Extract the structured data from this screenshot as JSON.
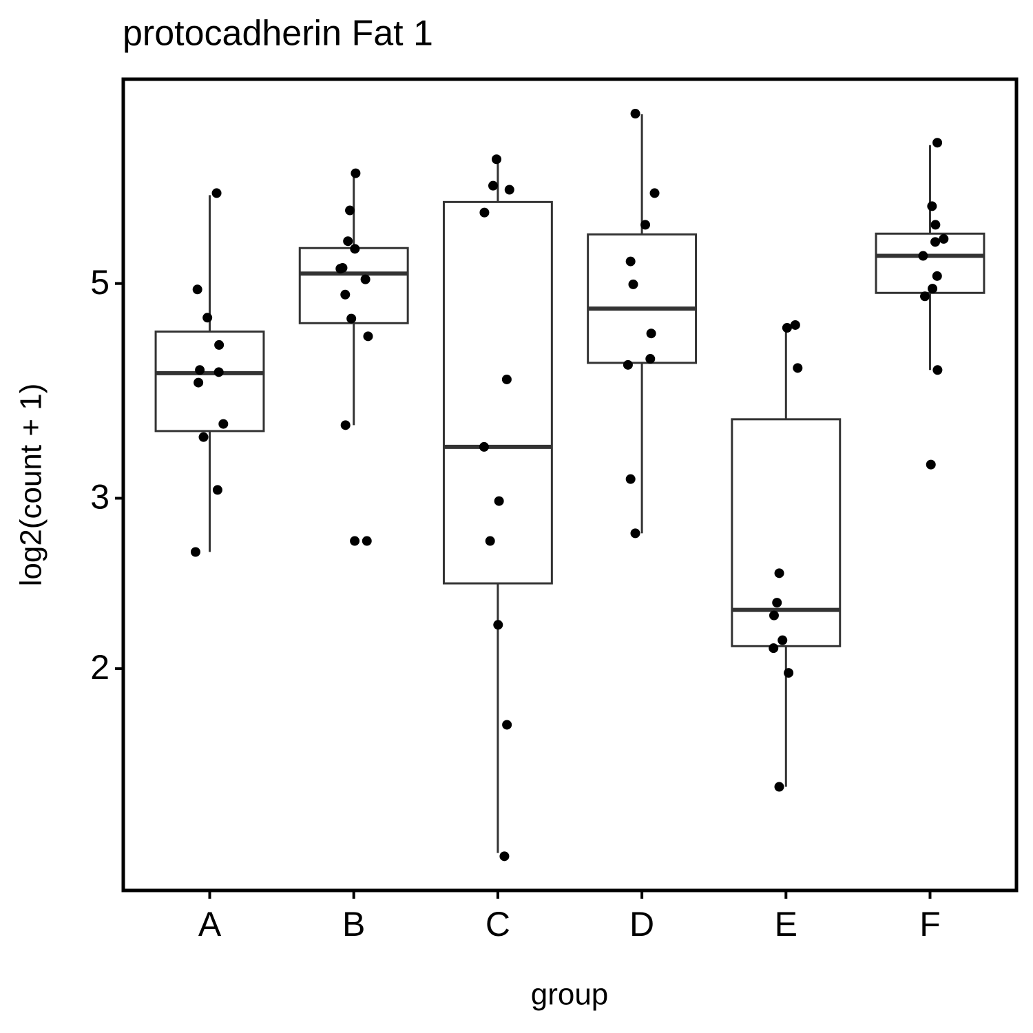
{
  "chart_data": {
    "type": "box",
    "title": "protocadherin Fat 1",
    "x_label": "group",
    "y_label": "log2(count + 1)",
    "categories": [
      "A",
      "B",
      "C",
      "D",
      "E",
      "F"
    ],
    "boxes": [
      {
        "whisker_low": 2.64,
        "q1": 3.52,
        "median": 4.04,
        "q3": 4.46,
        "whisker_high": 6.17
      },
      {
        "whisker_low": 3.57,
        "q1": 4.55,
        "median": 5.12,
        "q3": 5.44,
        "whisker_high": 6.48
      },
      {
        "whisker_low": 1.29,
        "q1": 2.45,
        "median": 3.39,
        "q3": 6.07,
        "whisker_high": 6.7
      },
      {
        "whisker_low": 2.76,
        "q1": 4.14,
        "median": 4.71,
        "q3": 5.62,
        "whisker_high": 7.48
      },
      {
        "whisker_low": 1.51,
        "q1": 2.11,
        "median": 2.3,
        "q3": 3.62,
        "whisker_high": 4.49
      },
      {
        "whisker_low": 4.07,
        "q1": 4.89,
        "median": 5.34,
        "q3": 5.63,
        "whisker_high": 6.95
      }
    ],
    "points": [
      [
        6.2,
        4.93,
        4.61,
        4.32,
        4.07,
        4.05,
        3.95,
        3.58,
        3.47,
        3.06,
        2.64
      ],
      [
        6.5,
        5.95,
        5.53,
        5.43,
        5.19,
        5.18,
        5.05,
        4.87,
        4.6,
        4.41,
        3.57,
        2.71,
        2.71
      ],
      [
        6.72,
        6.31,
        6.25,
        5.92,
        3.98,
        3.39,
        2.98,
        2.71,
        2.22,
        1.75,
        1.28
      ],
      [
        7.49,
        6.2,
        5.75,
        5.27,
        4.99,
        4.44,
        4.18,
        4.12,
        3.14,
        2.76
      ],
      [
        4.53,
        4.5,
        4.09,
        2.51,
        2.34,
        2.27,
        2.14,
        2.1,
        1.98,
        1.51
      ],
      [
        6.99,
        6.01,
        5.75,
        5.56,
        5.52,
        5.34,
        5.09,
        4.94,
        4.85,
        4.07,
        3.25
      ]
    ],
    "ylim": [
      1.18,
      8.13
    ],
    "yticks": [
      2,
      3,
      5
    ],
    "yscale": "log",
    "box_color": "#333333",
    "point_color": "#000000",
    "grid": false
  }
}
